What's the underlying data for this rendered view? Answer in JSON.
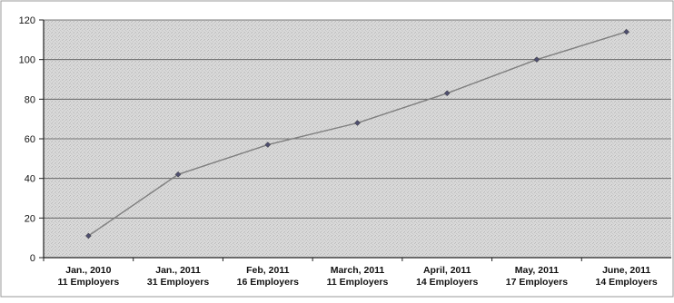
{
  "chart_data": {
    "type": "line",
    "categories": [
      [
        "Jan., 2010",
        "11 Employers"
      ],
      [
        "Jan., 2011",
        "31 Employers"
      ],
      [
        "Feb, 2011",
        "16 Employers"
      ],
      [
        "March, 2011",
        "11 Employers"
      ],
      [
        "April, 2011",
        "14 Employers"
      ],
      [
        "May, 2011",
        "17 Employers"
      ],
      [
        "June, 2011",
        "14 Employers"
      ]
    ],
    "series": [
      {
        "values": [
          11,
          42,
          57,
          68,
          83,
          100,
          114
        ]
      }
    ],
    "ylim": [
      0,
      120
    ],
    "yticks": [
      0,
      20,
      40,
      60,
      80,
      100,
      120
    ],
    "grid": true,
    "legend": "none",
    "colors": {
      "line": "#7f7f7f",
      "marker": "#4f4f6f",
      "grid": "#555555",
      "plot_bg": "#d6d6d6"
    }
  }
}
